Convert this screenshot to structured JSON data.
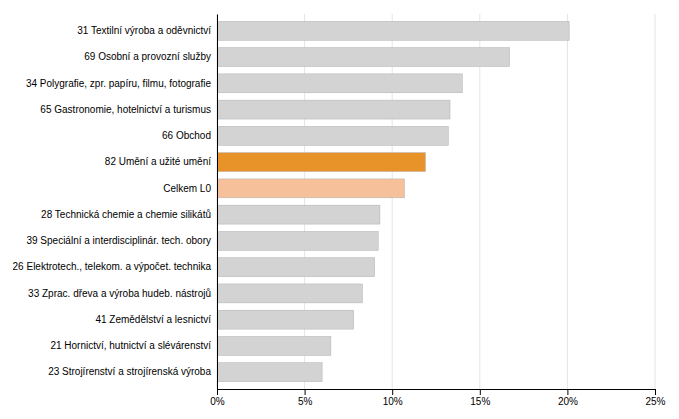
{
  "chart_data": {
    "type": "bar",
    "orientation": "horizontal",
    "categories": [
      "23 Strojírenství a strojírenská výroba",
      "21 Hornictví, hutnictví a slévárenství",
      "41 Zemědělství a lesnictví",
      "33 Zprac. dřeva a výroba hudeb. nástrojů",
      "26 Elektrotech., telekom. a výpočet. technika",
      "39 Speciální a interdisciplinár. tech. obory",
      "28 Technická chemie a chemie silikátů",
      "Celkem L0",
      "82 Umění a užité umění",
      "66 Obchod",
      "65 Gastronomie, hotelnictví a turismus",
      "34 Polygrafie, zpr. papíru, filmu, fotografie",
      "69 Osobní a provozní služby",
      "31 Textilní výroba a oděvnictví"
    ],
    "values": [
      0.06,
      0.065,
      0.078,
      0.083,
      0.09,
      0.092,
      0.093,
      0.107,
      0.119,
      0.132,
      0.133,
      0.14,
      0.167,
      0.201
    ],
    "colors": [
      "#d3d3d3",
      "#d3d3d3",
      "#d3d3d3",
      "#d3d3d3",
      "#d3d3d3",
      "#d3d3d3",
      "#d3d3d3",
      "#f5c09a",
      "#e8922a",
      "#d3d3d3",
      "#d3d3d3",
      "#d3d3d3",
      "#d3d3d3",
      "#d3d3d3"
    ],
    "xlim": [
      0,
      0.25
    ],
    "xticks": [
      {
        "value": 0,
        "label": "0%"
      },
      {
        "value": 0.05,
        "label": "5%"
      },
      {
        "value": 0.1,
        "label": "10%"
      },
      {
        "value": 0.15,
        "label": "15%"
      },
      {
        "value": 0.2,
        "label": "20%"
      },
      {
        "value": 0.25,
        "label": "25%"
      }
    ],
    "grid": true
  }
}
